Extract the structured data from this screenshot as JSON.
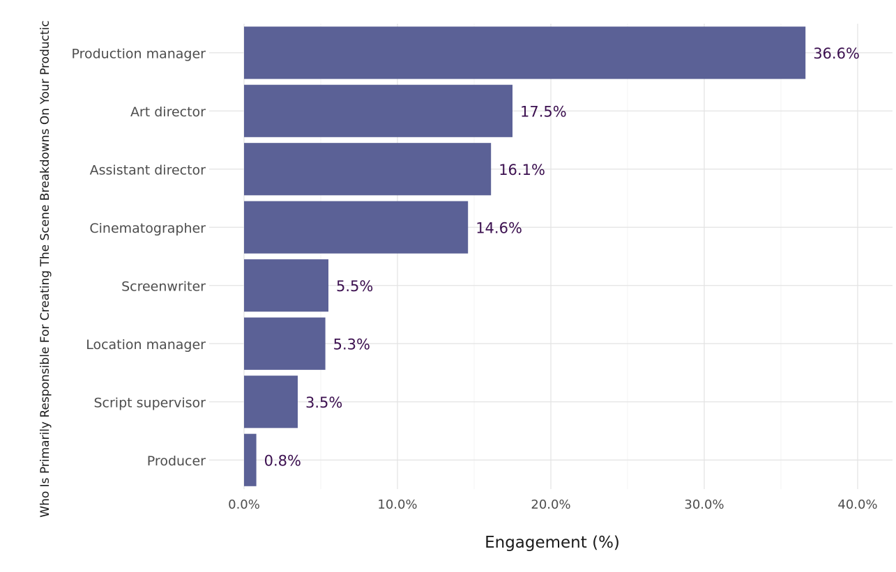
{
  "chart_data": {
    "type": "bar",
    "orientation": "horizontal",
    "title": "",
    "xlabel": "Engagement (%)",
    "ylabel": "Who Is Primarily Responsible For Creating The Scene Breakdowns On Your Productic",
    "categories": [
      "Production manager",
      "Art director",
      "Assistant director",
      "Cinematographer",
      "Screenwriter",
      "Location manager",
      "Script supervisor",
      "Producer"
    ],
    "values": [
      36.6,
      17.5,
      16.1,
      14.6,
      5.5,
      5.3,
      3.5,
      0.8
    ],
    "value_labels": [
      "36.6%",
      "17.5%",
      "16.1%",
      "14.6%",
      "5.5%",
      "5.3%",
      "3.5%",
      "0.8%"
    ],
    "xlim": [
      0,
      42
    ],
    "x_ticks": [
      0,
      10,
      20,
      30,
      40
    ],
    "x_tick_labels": [
      "0.0%",
      "10.0%",
      "20.0%",
      "30.0%",
      "40.0%"
    ],
    "grid": true,
    "legend": "none",
    "bar_color": "#5b6196",
    "label_color": "#3b0f4f",
    "grid_color": "#e3e3e3"
  }
}
